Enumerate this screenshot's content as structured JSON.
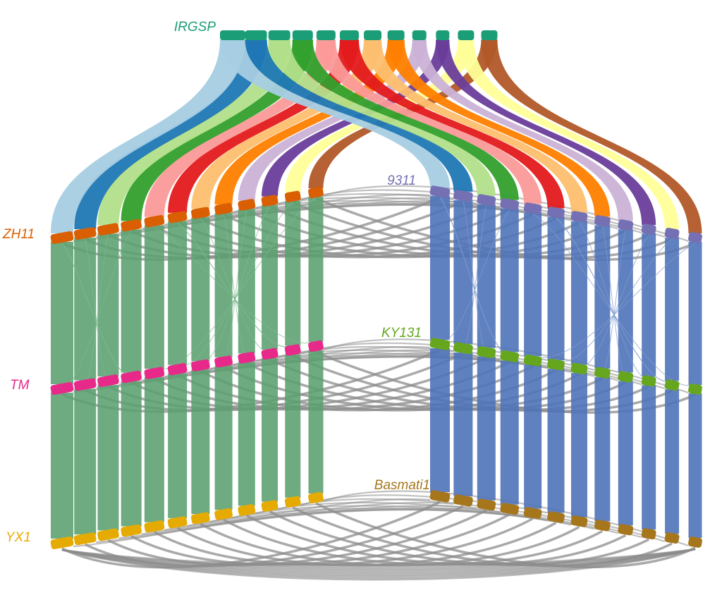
{
  "genomes": [
    {
      "id": "irgsp",
      "name": "IRGSP",
      "color": "#1b9e77",
      "chromosomes": 12
    },
    {
      "id": "zh11",
      "name": "ZH11",
      "color": "#d95f02",
      "chromosomes": 12
    },
    {
      "id": "n9311",
      "name": "9311",
      "color": "#7570b3",
      "chromosomes": 12
    },
    {
      "id": "tm",
      "name": "TM",
      "color": "#e7298a",
      "chromosomes": 12
    },
    {
      "id": "ky131",
      "name": "KY131",
      "color": "#66a61e",
      "chromosomes": 12
    },
    {
      "id": "yx1",
      "name": "YX1",
      "color": "#e6ab02",
      "chromosomes": 12
    },
    {
      "id": "basmati1",
      "name": "Basmati1",
      "color": "#a6761d",
      "chromosomes": 12
    }
  ],
  "chromosome_colors": [
    "#a6cee3",
    "#1f78b4",
    "#b2df8a",
    "#33a02c",
    "#fb9a99",
    "#e31a1c",
    "#fdbf6f",
    "#ff7f00",
    "#cab2d6",
    "#6a3d9a",
    "#ffff99",
    "#b15928"
  ],
  "link_colors": {
    "left_group": "#5a9f6e",
    "right_group": "#4f73b8",
    "inter_group": "#8c8c8c"
  }
}
